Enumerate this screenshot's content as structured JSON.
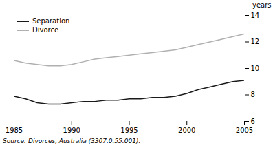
{
  "chart_data": {
    "type": "line",
    "x": [
      1985,
      1986,
      1987,
      1988,
      1989,
      1990,
      1991,
      1992,
      1993,
      1994,
      1995,
      1996,
      1997,
      1998,
      1999,
      2000,
      2001,
      2002,
      2003,
      2004,
      2005
    ],
    "series": [
      {
        "name": "Separation",
        "color": "#1a1a1a",
        "values": [
          7.9,
          7.7,
          7.4,
          7.3,
          7.3,
          7.4,
          7.5,
          7.5,
          7.6,
          7.6,
          7.7,
          7.7,
          7.8,
          7.8,
          7.9,
          8.1,
          8.4,
          8.6,
          8.8,
          9.0,
          9.1
        ]
      },
      {
        "name": "Divorce",
        "color": "#b0b0b0",
        "values": [
          10.6,
          10.4,
          10.3,
          10.2,
          10.2,
          10.3,
          10.5,
          10.7,
          10.8,
          10.9,
          11.0,
          11.1,
          11.2,
          11.3,
          11.4,
          11.6,
          11.8,
          12.0,
          12.2,
          12.4,
          12.6
        ]
      }
    ],
    "xlim": [
      1985,
      2005
    ],
    "xticks": [
      1985,
      1990,
      1995,
      2000,
      2005
    ],
    "ylim": [
      6,
      14
    ],
    "yticks": [
      6,
      8,
      10,
      12,
      14
    ],
    "ylabel": "years",
    "caption": "Source: Divorces, Australia (3307.0.55.001).",
    "legend": "upper left",
    "grid": false
  }
}
